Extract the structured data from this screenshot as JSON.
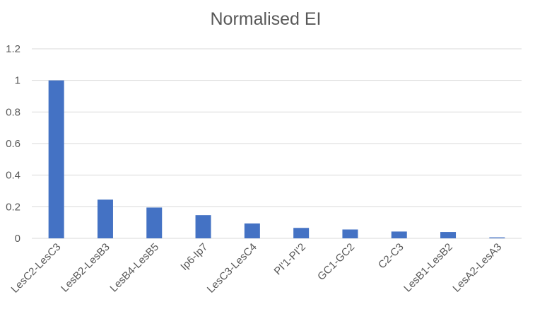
{
  "chart_data": {
    "type": "bar",
    "title": "Normalised EI",
    "xlabel": "",
    "ylabel": "",
    "ylim": [
      0,
      1.2
    ],
    "yticks": [
      "0",
      "0.2",
      "0.4",
      "0.6",
      "0.8",
      "1",
      "1.2"
    ],
    "grid": true,
    "legend": "none",
    "bar_color": "#4472c4",
    "categories": [
      "LesC2-LesC3",
      "LesB2-LesB3",
      "LesB4-LesB5",
      "Ip6-Ip7",
      "LesC3-LesC4",
      "PI'1-PI'2",
      "GC1-GC2",
      "C2-C3",
      "LesB1-LesB2",
      "LesA2-LesA3"
    ],
    "values": [
      1.0,
      0.245,
      0.195,
      0.147,
      0.094,
      0.066,
      0.056,
      0.043,
      0.04,
      0.006
    ]
  }
}
